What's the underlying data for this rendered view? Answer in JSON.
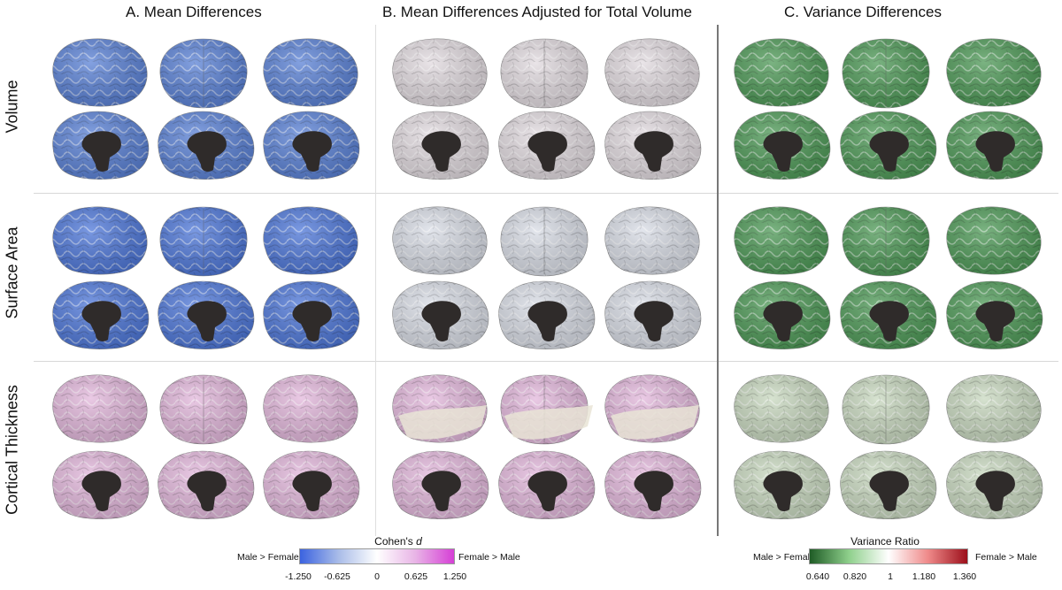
{
  "columns": [
    {
      "title": "A. Mean Differences"
    },
    {
      "title": "B. Mean Differences Adjusted for Total Volume"
    },
    {
      "title": "C. Variance Differences"
    }
  ],
  "rows": [
    {
      "label": "Volume"
    },
    {
      "label": "Surface Area"
    },
    {
      "label": "Cortical Thickness"
    }
  ],
  "colors": {
    "volume_A": "#5b82d6",
    "surface_A": "#4f78d9",
    "volume_B": "#e2dbe0",
    "surface_B": "#d9dde6",
    "thickness": "#e3b8dc",
    "thickness_light": "#e9e4d6",
    "variance_green": "#4f9a58",
    "variance_mixed": "#c9d9c0",
    "brainstem": "#2f2b2a",
    "separator": "#777777"
  },
  "legend_cohens_d": {
    "title_prefix": "Cohen's",
    "title_var": "d",
    "left_label": "Male > Female",
    "right_label": "Female > Male",
    "ticks": [
      "-1.250",
      "-0.625",
      "0",
      "0.625",
      "1.250"
    ],
    "gradient": [
      "#3b63e0",
      "#a9bce8",
      "#ffffff",
      "#e8b4e6",
      "#d63fd6"
    ]
  },
  "legend_variance": {
    "title": "Variance Ratio",
    "left_label": "Male > Female",
    "right_label": "Female > Male",
    "ticks": [
      "0.640",
      "0.820",
      "1",
      "1.180",
      "1.360"
    ],
    "gradient": [
      "#1f5c26",
      "#8fd08c",
      "#ffffff",
      "#ef8a8a",
      "#9c0f1a"
    ]
  }
}
